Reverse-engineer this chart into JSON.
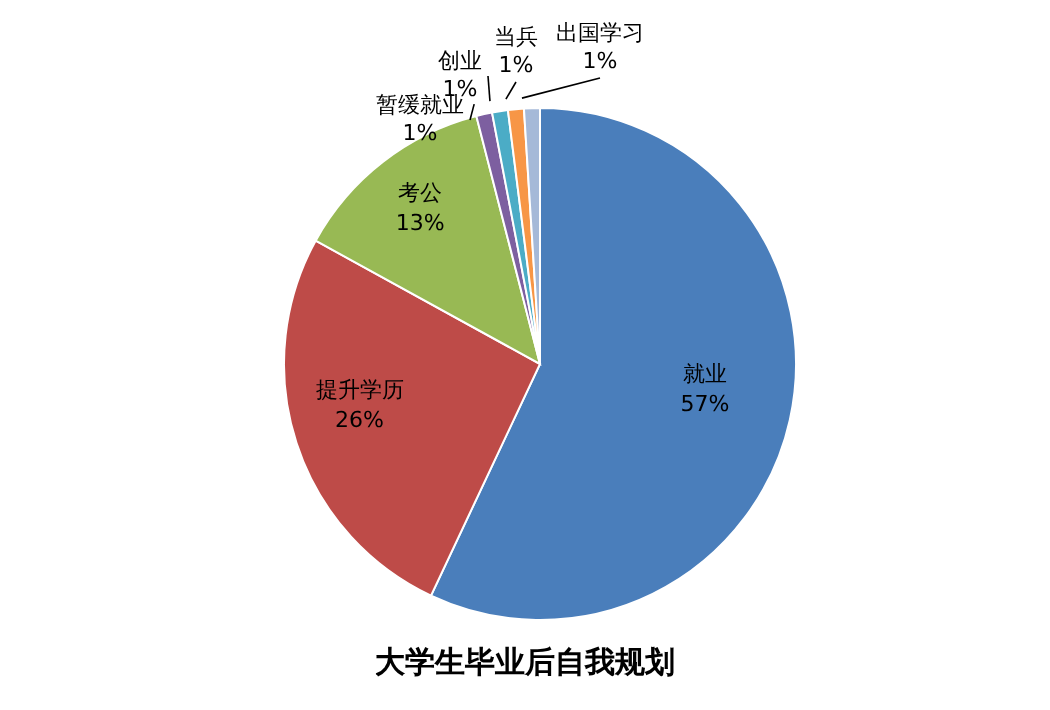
{
  "chart_data": {
    "type": "pie",
    "title": "大学生毕业后自我规划",
    "categories": [
      "就业",
      "提升学历",
      "考公",
      "暂缓就业",
      "创业",
      "当兵",
      "出国学习"
    ],
    "values": [
      57,
      26,
      13,
      1,
      1,
      1,
      1
    ],
    "value_labels": [
      "57%",
      "26%",
      "13%",
      "1%",
      "1%",
      "1%",
      "1%"
    ],
    "colors": [
      "#4a7ebb",
      "#be4b48",
      "#98b954",
      "#7d5fa0",
      "#4bacc6",
      "#f79646",
      "#a5b9d8"
    ],
    "legend": false
  }
}
